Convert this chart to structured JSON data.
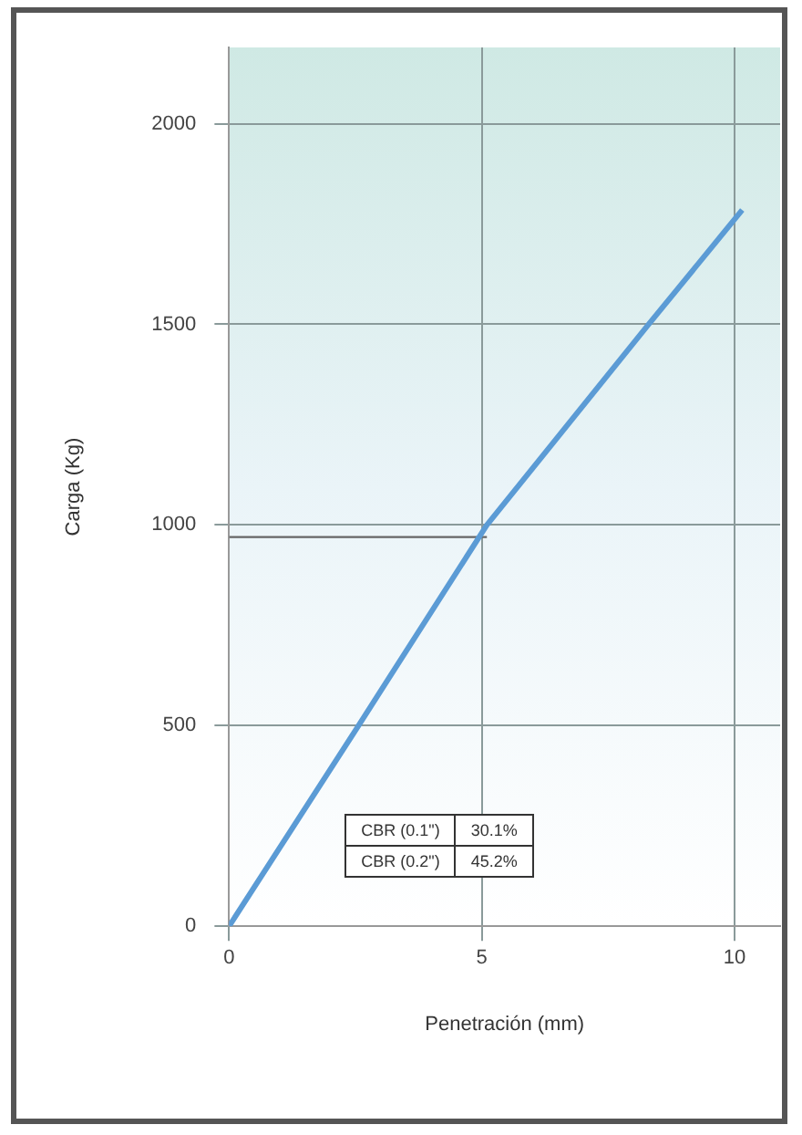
{
  "chart_data": {
    "type": "line",
    "xlabel": "Penetración (mm)",
    "ylabel": "Carga (Kg)",
    "xlim": [
      0,
      10.9
    ],
    "xticks": [
      0,
      5,
      10
    ],
    "ylim": [
      0,
      2190
    ],
    "yticks": [
      0,
      500,
      1000,
      1500,
      2000
    ],
    "grid": true,
    "legend": false,
    "marker": "none",
    "series": [
      {
        "color": "#5b9bd5",
        "x": [
          0,
          2.56,
          5.1,
          8.3,
          10.15
        ],
        "values": [
          0,
          500,
          1000,
          1500,
          1785
        ]
      },
      {
        "color": "#666666",
        "x": [
          0,
          5.1
        ],
        "values": [
          970,
          970
        ]
      }
    ],
    "annotations": [
      "CBR (0.1\")",
      "30.1%",
      "CBR (0.2\")",
      "45.2%"
    ]
  }
}
